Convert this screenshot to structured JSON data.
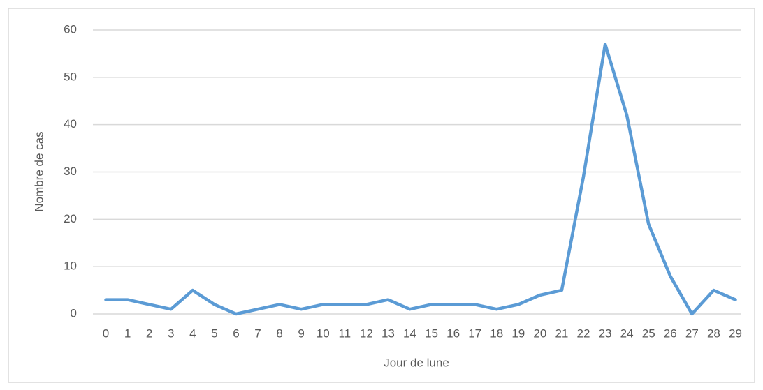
{
  "chart_data": {
    "type": "line",
    "x_label": "Jour de lune",
    "y_label": "Nombre de cas",
    "categories": [
      "0",
      "1",
      "2",
      "3",
      "4",
      "5",
      "6",
      "7",
      "8",
      "9",
      "10",
      "11",
      "12",
      "13",
      "14",
      "15",
      "16",
      "17",
      "18",
      "19",
      "20",
      "21",
      "22",
      "23",
      "24",
      "25",
      "26",
      "27",
      "28",
      "29"
    ],
    "values": [
      3,
      3,
      2,
      1,
      5,
      2,
      0,
      1,
      2,
      1,
      2,
      2,
      2,
      3,
      1,
      2,
      2,
      2,
      1,
      2,
      4,
      5,
      29,
      57,
      42,
      19,
      8,
      0,
      5,
      3
    ],
    "color": "#5b9bd5",
    "ylim": [
      0,
      60
    ],
    "yticks": [
      0,
      10,
      20,
      30,
      40,
      50,
      60
    ],
    "grid": true
  }
}
